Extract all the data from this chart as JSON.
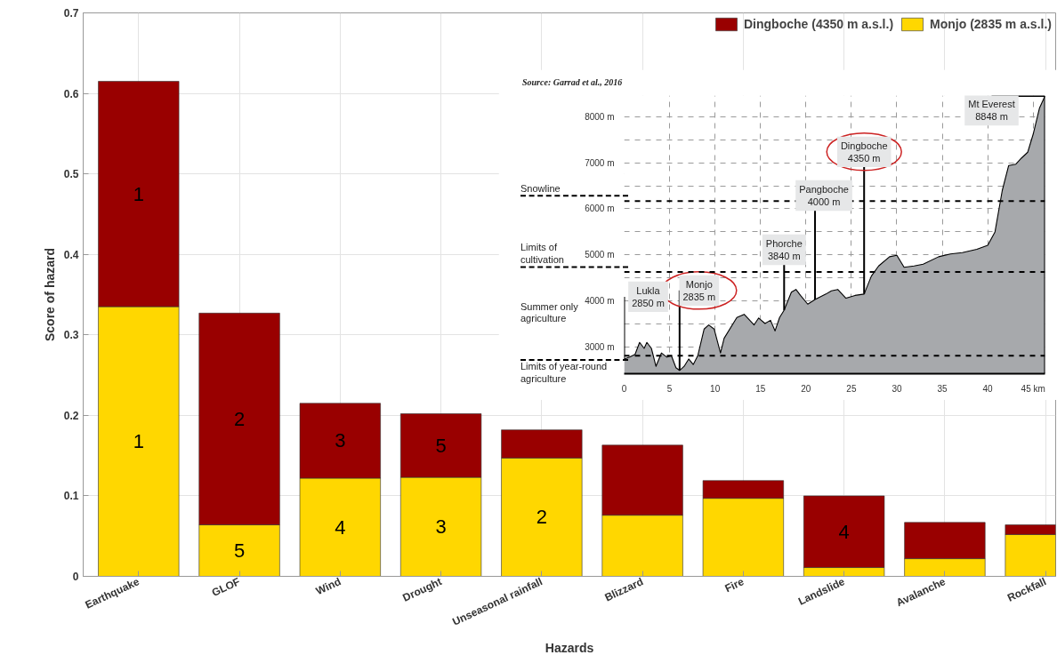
{
  "chart_data": [
    {
      "type": "bar",
      "stacked": true,
      "categories": [
        "Earthquake",
        "GLOF",
        "Wind",
        "Drought",
        "Unseasonal rainfall",
        "Blizzard",
        "Fire",
        "Landslide",
        "Avalanche",
        "Rockfall"
      ],
      "xlabel": "Hazards",
      "ylabel": "Score of hazard",
      "ylim": [
        0,
        0.7
      ],
      "yticks": [
        0,
        0.1,
        0.2,
        0.3,
        0.4,
        0.5,
        0.6,
        0.7
      ],
      "grid": true,
      "legend": "top right",
      "series": [
        {
          "name": "Monjo (2835 m a.s.l.)",
          "color": "#ffd700",
          "values": [
            0.335,
            0.064,
            0.122,
            0.123,
            0.147,
            0.076,
            0.097,
            0.011,
            0.022,
            0.052
          ]
        },
        {
          "name": "Dingboche (4350 m a.s.l.)",
          "color": "#990000",
          "values": [
            0.28,
            0.263,
            0.093,
            0.079,
            0.035,
            0.087,
            0.022,
            0.089,
            0.045,
            0.012
          ]
        }
      ],
      "annotations": [
        "1",
        "1",
        "5",
        "2",
        "4",
        "3",
        "3",
        "5",
        "2",
        "4"
      ]
    },
    {
      "type": "area",
      "x": [
        0,
        0.6,
        1.2,
        1.7,
        2.2,
        2.5,
        3.0,
        3.5,
        4.1,
        4.7,
        5.2,
        5.7,
        6.1,
        6.6,
        7.1,
        7.6,
        8.1,
        8.8,
        9.3,
        9.9,
        10.6,
        11.0,
        12.4,
        13.2,
        14.3,
        14.8,
        15.5,
        16.1,
        16.6,
        17.1,
        17.6,
        18.4,
        18.9,
        19.4,
        20.2,
        21.0,
        22.2,
        22.8,
        23.5,
        24.4,
        25.4,
        26.4,
        27.2,
        28.0,
        29.2,
        30.0,
        30.8,
        31.9,
        32.9,
        34.6,
        35.9,
        37.2,
        38.8,
        40.0,
        40.8,
        41.6,
        42.3,
        43.1,
        43.7,
        44.4,
        45.0,
        45.7,
        46.3
      ],
      "series": [
        {
          "color": "#a7a9ac",
          "values": [
            2740,
            2780,
            2840,
            3100,
            2970,
            3100,
            2970,
            2580,
            2870,
            2780,
            2810,
            2550,
            2490,
            2580,
            2740,
            2620,
            2810,
            3390,
            3480,
            3390,
            2870,
            3190,
            3640,
            3710,
            3480,
            3630,
            3510,
            3580,
            3350,
            3640,
            3800,
            4190,
            4250,
            4120,
            3930,
            4030,
            4150,
            4220,
            4250,
            4060,
            4120,
            4150,
            4540,
            4760,
            4960,
            4990,
            4730,
            4760,
            4800,
            4960,
            5020,
            5050,
            5120,
            5210,
            5500,
            6400,
            6940,
            6970,
            7100,
            7230,
            7620,
            8190,
            8450
          ]
        }
      ],
      "xlim": [
        0,
        46.3
      ],
      "xticks": [
        0,
        5,
        10,
        15,
        20,
        25,
        30,
        35,
        40,
        {
          "value": 45,
          "label": "45 km"
        }
      ],
      "ylim": [
        2420,
        8460
      ],
      "yticks": [
        {
          "value": 3000,
          "label": "3000 m"
        },
        {
          "value": 3500,
          "label": null
        },
        {
          "value": 4000,
          "label": "4000 m"
        },
        {
          "value": 4500,
          "label": null
        },
        {
          "value": 5000,
          "label": "5000 m"
        },
        {
          "value": 5500,
          "label": null
        },
        {
          "value": 6000,
          "label": "6000 m"
        },
        {
          "value": 6500,
          "label": null
        },
        {
          "value": 7000,
          "label": "7000 m"
        },
        {
          "value": 7500,
          "label": null
        },
        {
          "value": 8000,
          "label": "8000 m"
        }
      ],
      "grid": true,
      "ref_lines": [
        {
          "axis": "y",
          "value": 6170,
          "label": "Snowline",
          "color": "#000000",
          "line_style": "dashed"
        },
        {
          "axis": "y",
          "value": 4630,
          "label": "Limits of\ncultivation",
          "color": "#000000",
          "line_style": "dashed"
        },
        {
          "axis": "y",
          "value": 2810,
          "label": "Limits of year-round\nagriculture",
          "color": "#000000",
          "line_style": "dashed"
        }
      ],
      "annotations": [
        "Source: Garrad et al., 2016",
        "Summer only\nagriculture",
        {
          "text": "Lukla\n2850 m",
          "x": 0,
          "y": 2740
        },
        {
          "text": "Monjo\n2835 m",
          "x": 6.1,
          "y": 2490
        },
        {
          "text": "Phorche\n3840 m",
          "x": 17.6,
          "y": 3800
        },
        {
          "text": "Pangboche\n4000 m",
          "x": 21.0,
          "y": 4030
        },
        {
          "text": "Dingboche\n4350 m",
          "x": 26.4,
          "y": 4150
        },
        {
          "text": "Mt Everest\n8848 m",
          "x": 46.3,
          "y": 8450
        }
      ]
    }
  ]
}
